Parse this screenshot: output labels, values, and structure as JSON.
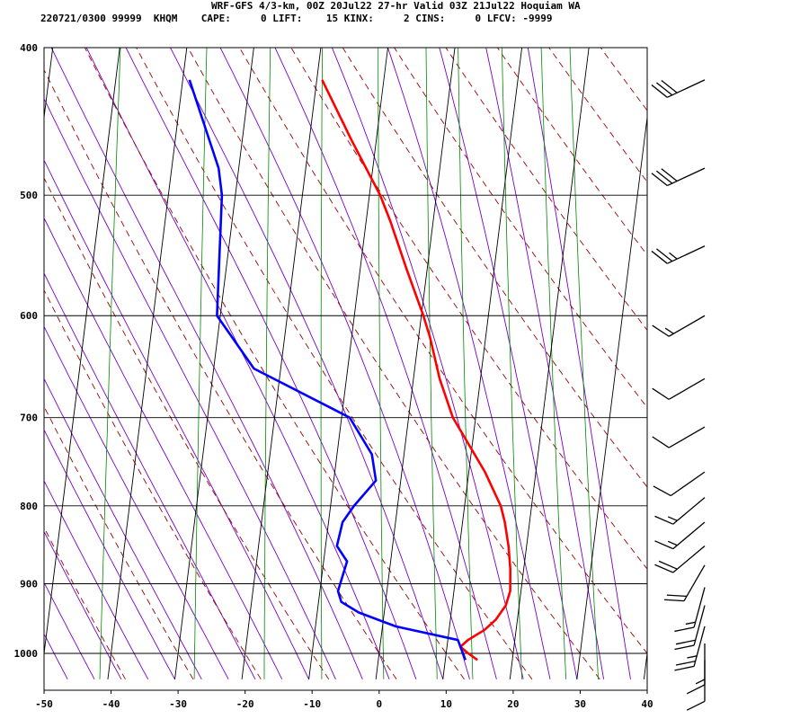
{
  "header": {
    "line1": "WRF-GFS 4/3-km, 00Z 20Jul22 27-hr Valid 03Z 21Jul22 Hoquiam WA",
    "line2": "220721/0300 99999  KHQM    CAPE:     0 LIFT:    15 KINX:     2 CINS:     0 LFCV: -9999"
  },
  "colors": {
    "temperature": "#ff0000",
    "dewpoint": "#0000ff",
    "dry_adiabat": "#990000",
    "moist_adiabat": "#7700cc",
    "mixing_ratio": "#008800",
    "grid": "#000000"
  },
  "chart_data": {
    "type": "line",
    "title": "",
    "xlabel": "",
    "ylabel": "",
    "skewt": true,
    "xlim": [
      -50,
      40
    ],
    "pressure_range": [
      1040,
      400
    ],
    "pressure_log_scale": true,
    "grid": true,
    "x_ticks": [
      "-50",
      "-40",
      "-30",
      "-20",
      "-10",
      "0",
      "10",
      "20",
      "30",
      "40"
    ],
    "p_ticks": [
      "400",
      "500",
      "600",
      "700",
      "800",
      "900",
      "1000"
    ],
    "series": [
      {
        "key": "temperature",
        "points": [
          [
            1010,
            14.8
          ],
          [
            1000,
            13.3
          ],
          [
            990,
            12.0
          ],
          [
            980,
            13.0
          ],
          [
            965,
            15.3
          ],
          [
            950,
            16.8
          ],
          [
            930,
            18.0
          ],
          [
            910,
            18.4
          ],
          [
            880,
            18.0
          ],
          [
            850,
            17.3
          ],
          [
            820,
            16.3
          ],
          [
            800,
            15.4
          ],
          [
            760,
            12.4
          ],
          [
            720,
            8.6
          ],
          [
            700,
            6.6
          ],
          [
            660,
            3.9
          ],
          [
            620,
            1.7
          ],
          [
            600,
            0.3
          ],
          [
            560,
            -3.0
          ],
          [
            520,
            -6.4
          ],
          [
            500,
            -8.4
          ],
          [
            460,
            -13.7
          ],
          [
            420,
            -19.2
          ]
        ]
      },
      {
        "key": "dewpoint",
        "points": [
          [
            1010,
            13.0
          ],
          [
            990,
            12.0
          ],
          [
            980,
            11.5
          ],
          [
            960,
            2.0
          ],
          [
            940,
            -3.8
          ],
          [
            925,
            -6.6
          ],
          [
            910,
            -7.3
          ],
          [
            870,
            -6.5
          ],
          [
            850,
            -8.3
          ],
          [
            820,
            -7.9
          ],
          [
            800,
            -6.5
          ],
          [
            770,
            -3.7
          ],
          [
            740,
            -4.8
          ],
          [
            700,
            -8.8
          ],
          [
            650,
            -24.0
          ],
          [
            600,
            -30.5
          ],
          [
            500,
            -32.0
          ],
          [
            480,
            -33.0
          ],
          [
            420,
            -39.0
          ]
        ]
      }
    ],
    "wind_barbs": [
      {
        "p": 420,
        "dir": 245,
        "kt": 30
      },
      {
        "p": 480,
        "dir": 245,
        "kt": 30
      },
      {
        "p": 540,
        "dir": 245,
        "kt": 25
      },
      {
        "p": 600,
        "dir": 240,
        "kt": 15
      },
      {
        "p": 660,
        "dir": 240,
        "kt": 10
      },
      {
        "p": 710,
        "dir": 240,
        "kt": 10
      },
      {
        "p": 760,
        "dir": 235,
        "kt": 10
      },
      {
        "p": 790,
        "dir": 230,
        "kt": 15
      },
      {
        "p": 820,
        "dir": 230,
        "kt": 15
      },
      {
        "p": 850,
        "dir": 230,
        "kt": 20
      },
      {
        "p": 875,
        "dir": 210,
        "kt": 20
      },
      {
        "p": 905,
        "dir": 195,
        "kt": 15
      },
      {
        "p": 930,
        "dir": 195,
        "kt": 20
      },
      {
        "p": 960,
        "dir": 195,
        "kt": 25
      },
      {
        "p": 985,
        "dir": 180,
        "kt": 15
      },
      {
        "p": 1010,
        "dir": 180,
        "kt": 10
      }
    ]
  }
}
